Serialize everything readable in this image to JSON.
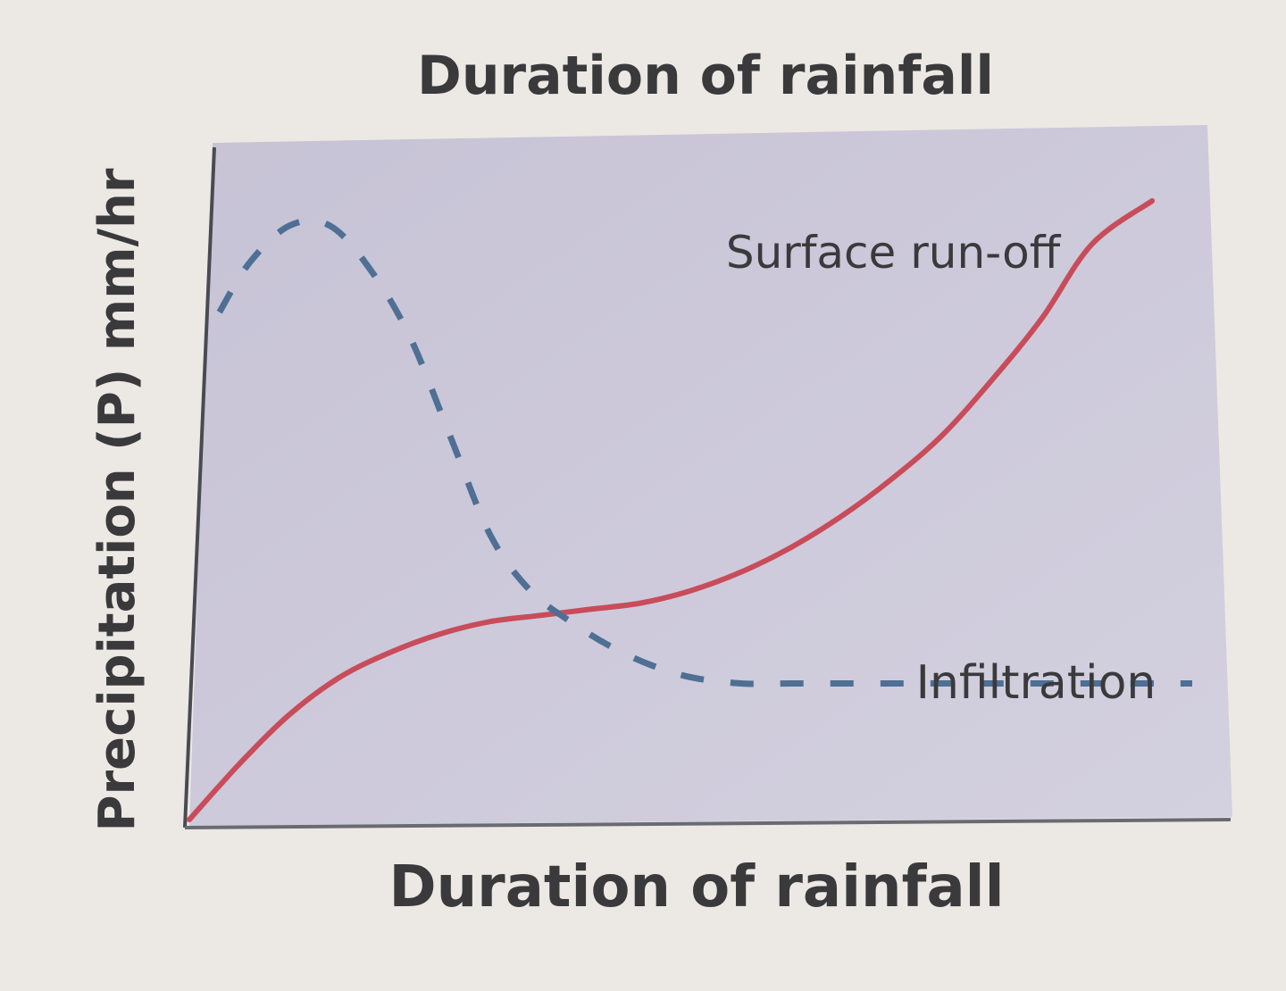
{
  "chart_data": {
    "type": "line",
    "title": "Duration of rainfall",
    "xlabel": "Duration of rainfall",
    "ylabel": "Precipitation (P) mm/hr",
    "xlim": [
      0,
      100
    ],
    "ylim": [
      0,
      100
    ],
    "grid": false,
    "series": [
      {
        "name": "Surface run-off",
        "color": "#c84c5a",
        "dash": "solid",
        "points": [
          [
            0,
            0
          ],
          [
            5,
            9
          ],
          [
            10,
            17
          ],
          [
            15,
            23
          ],
          [
            20,
            27
          ],
          [
            25,
            30
          ],
          [
            30,
            32
          ],
          [
            35,
            33
          ],
          [
            40,
            34
          ],
          [
            45,
            35
          ],
          [
            50,
            37
          ],
          [
            55,
            40
          ],
          [
            60,
            44
          ],
          [
            65,
            49
          ],
          [
            70,
            55
          ],
          [
            75,
            62
          ],
          [
            80,
            71
          ],
          [
            85,
            81
          ],
          [
            90,
            93
          ],
          [
            96,
            100
          ]
        ]
      },
      {
        "name": "Infiltration",
        "color": "#4f6f94",
        "dash": "dashed",
        "points": [
          [
            3,
            82
          ],
          [
            6,
            90
          ],
          [
            10,
            96
          ],
          [
            14,
            96
          ],
          [
            18,
            89
          ],
          [
            22,
            78
          ],
          [
            26,
            62
          ],
          [
            30,
            46
          ],
          [
            34,
            37
          ],
          [
            38,
            32
          ],
          [
            42,
            28
          ],
          [
            46,
            25
          ],
          [
            50,
            23
          ],
          [
            55,
            22
          ],
          [
            60,
            22
          ],
          [
            70,
            22
          ],
          [
            80,
            22
          ],
          [
            90,
            22
          ],
          [
            100,
            22
          ]
        ]
      }
    ]
  }
}
